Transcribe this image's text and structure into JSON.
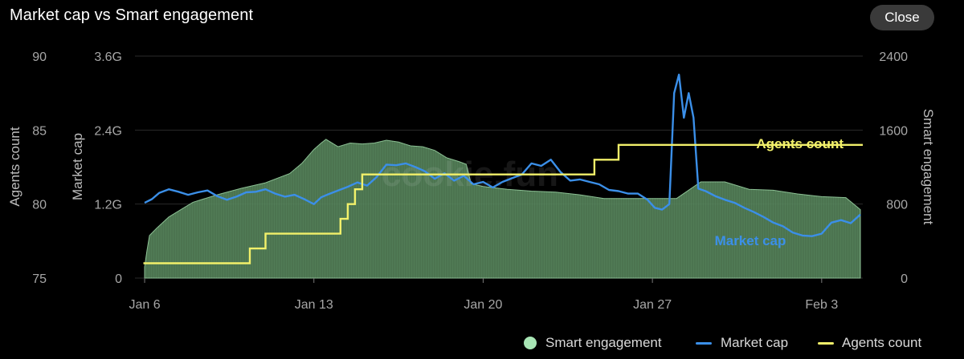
{
  "header": {
    "title": "Market cap vs Smart engagement",
    "close_label": "Close"
  },
  "colors": {
    "background": "#000000",
    "engagement": "#a8e6b5",
    "engagement_fill": "#5a8a5f",
    "market_cap": "#3b8fe8",
    "agents": "#f2f06a",
    "grid": "#2a2a2a"
  },
  "watermark": "cookie.fun",
  "legend": {
    "items": [
      {
        "label": "Smart engagement",
        "marker": "dot",
        "color": "#a8e6b5"
      },
      {
        "label": "Market cap",
        "marker": "line",
        "color": "#3b8fe8"
      },
      {
        "label": "Agents count",
        "marker": "line",
        "color": "#f2f06a"
      }
    ],
    "position": "bottom-right"
  },
  "chart_data": {
    "type": "line",
    "title": "Market cap vs Smart engagement",
    "x_ticks": [
      "Jan 6",
      "Jan 13",
      "Jan 20",
      "Jan 27",
      "Feb 3"
    ],
    "x_tick_values": [
      6,
      13,
      20,
      27,
      34
    ],
    "xlim": [
      5.6,
      35.7
    ],
    "grid": "horizontal",
    "axes": {
      "agents": {
        "label": "Agents count",
        "ticks": [
          "90",
          "85",
          "80",
          "75"
        ],
        "ylim": [
          75,
          90
        ],
        "side": "left-outer"
      },
      "market_cap": {
        "label": "Market cap",
        "ticks": [
          "3.6G",
          "2.4G",
          "1.2G",
          "0"
        ],
        "ylim": [
          0,
          3600000000
        ],
        "side": "left-inner"
      },
      "engagement": {
        "label": "Smart engagement",
        "ticks": [
          "2400",
          "1600",
          "800",
          "0"
        ],
        "ylim": [
          0,
          2400
        ],
        "side": "right"
      }
    },
    "annotations": [
      {
        "text": "Agents count",
        "series": "Agents count"
      },
      {
        "text": "Market cap",
        "series": "Market cap"
      }
    ],
    "series": [
      {
        "name": "Smart engagement",
        "kind": "area",
        "axis": "engagement",
        "x": [
          6.0,
          6.1,
          6.2,
          6.5,
          7,
          8,
          9,
          10,
          11,
          12,
          12.5,
          13,
          13.3,
          13.5,
          14,
          14.5,
          15,
          15.5,
          16,
          16.5,
          17,
          17.5,
          18,
          18.5,
          19,
          19.3,
          19.5,
          20,
          21,
          22,
          23,
          24,
          25,
          26,
          27,
          28,
          29,
          30,
          31,
          32,
          33,
          34,
          35,
          35.6
        ],
        "values": [
          120,
          300,
          460,
          540,
          660,
          820,
          900,
          970,
          1030,
          1130,
          1240,
          1390,
          1460,
          1500,
          1420,
          1460,
          1450,
          1460,
          1490,
          1470,
          1430,
          1420,
          1380,
          1300,
          1260,
          1230,
          1020,
          990,
          960,
          940,
          930,
          900,
          860,
          860,
          860,
          860,
          1040,
          1040,
          960,
          950,
          910,
          880,
          870,
          740
        ]
      },
      {
        "name": "Market cap",
        "kind": "line",
        "axis": "market_cap",
        "x": [
          6.0,
          6.3,
          6.6,
          7.0,
          7.4,
          7.8,
          8.2,
          8.6,
          9.0,
          9.4,
          9.8,
          10.2,
          10.6,
          11.0,
          11.4,
          11.8,
          12.2,
          12.6,
          13.0,
          13.3,
          13.6,
          14.0,
          14.4,
          14.8,
          15.2,
          15.6,
          16.0,
          16.4,
          16.8,
          17.2,
          17.6,
          18.0,
          18.4,
          18.8,
          19.2,
          19.6,
          20.0,
          20.4,
          20.8,
          21.2,
          21.6,
          22.0,
          22.4,
          22.8,
          23.2,
          23.6,
          24.0,
          24.4,
          24.8,
          25.2,
          25.6,
          26.0,
          26.4,
          26.8,
          27.1,
          27.4,
          27.7,
          27.9,
          28.1,
          28.3,
          28.5,
          28.7,
          28.9,
          29.2,
          29.6,
          30.0,
          30.4,
          30.8,
          31.2,
          31.6,
          32.0,
          32.4,
          32.8,
          33.2,
          33.6,
          34.0,
          34.4,
          34.8,
          35.2,
          35.6
        ],
        "values": [
          1220000000,
          1280000000,
          1380000000,
          1440000000,
          1400000000,
          1350000000,
          1390000000,
          1420000000,
          1330000000,
          1270000000,
          1320000000,
          1390000000,
          1400000000,
          1440000000,
          1370000000,
          1320000000,
          1350000000,
          1280000000,
          1200000000,
          1310000000,
          1360000000,
          1420000000,
          1480000000,
          1550000000,
          1500000000,
          1640000000,
          1840000000,
          1830000000,
          1860000000,
          1800000000,
          1730000000,
          1610000000,
          1700000000,
          1580000000,
          1660000000,
          1520000000,
          1560000000,
          1470000000,
          1560000000,
          1620000000,
          1680000000,
          1860000000,
          1820000000,
          1920000000,
          1720000000,
          1580000000,
          1600000000,
          1560000000,
          1520000000,
          1430000000,
          1410000000,
          1370000000,
          1370000000,
          1270000000,
          1140000000,
          1110000000,
          1200000000,
          3000000000,
          3300000000,
          2600000000,
          3000000000,
          2600000000,
          1450000000,
          1410000000,
          1330000000,
          1270000000,
          1220000000,
          1140000000,
          1070000000,
          990000000,
          900000000,
          840000000,
          740000000,
          690000000,
          680000000,
          720000000,
          900000000,
          940000000,
          890000000,
          1030000000
        ]
      },
      {
        "name": "Agents count",
        "kind": "step",
        "axis": "agents",
        "x": [
          5.95,
          10.35,
          11.0,
          13.9,
          14.1,
          14.4,
          14.7,
          15.0,
          24.6,
          25.6,
          35.7
        ],
        "values": [
          76,
          77,
          78,
          78,
          79,
          80,
          81,
          82,
          83,
          84,
          84
        ]
      }
    ]
  }
}
